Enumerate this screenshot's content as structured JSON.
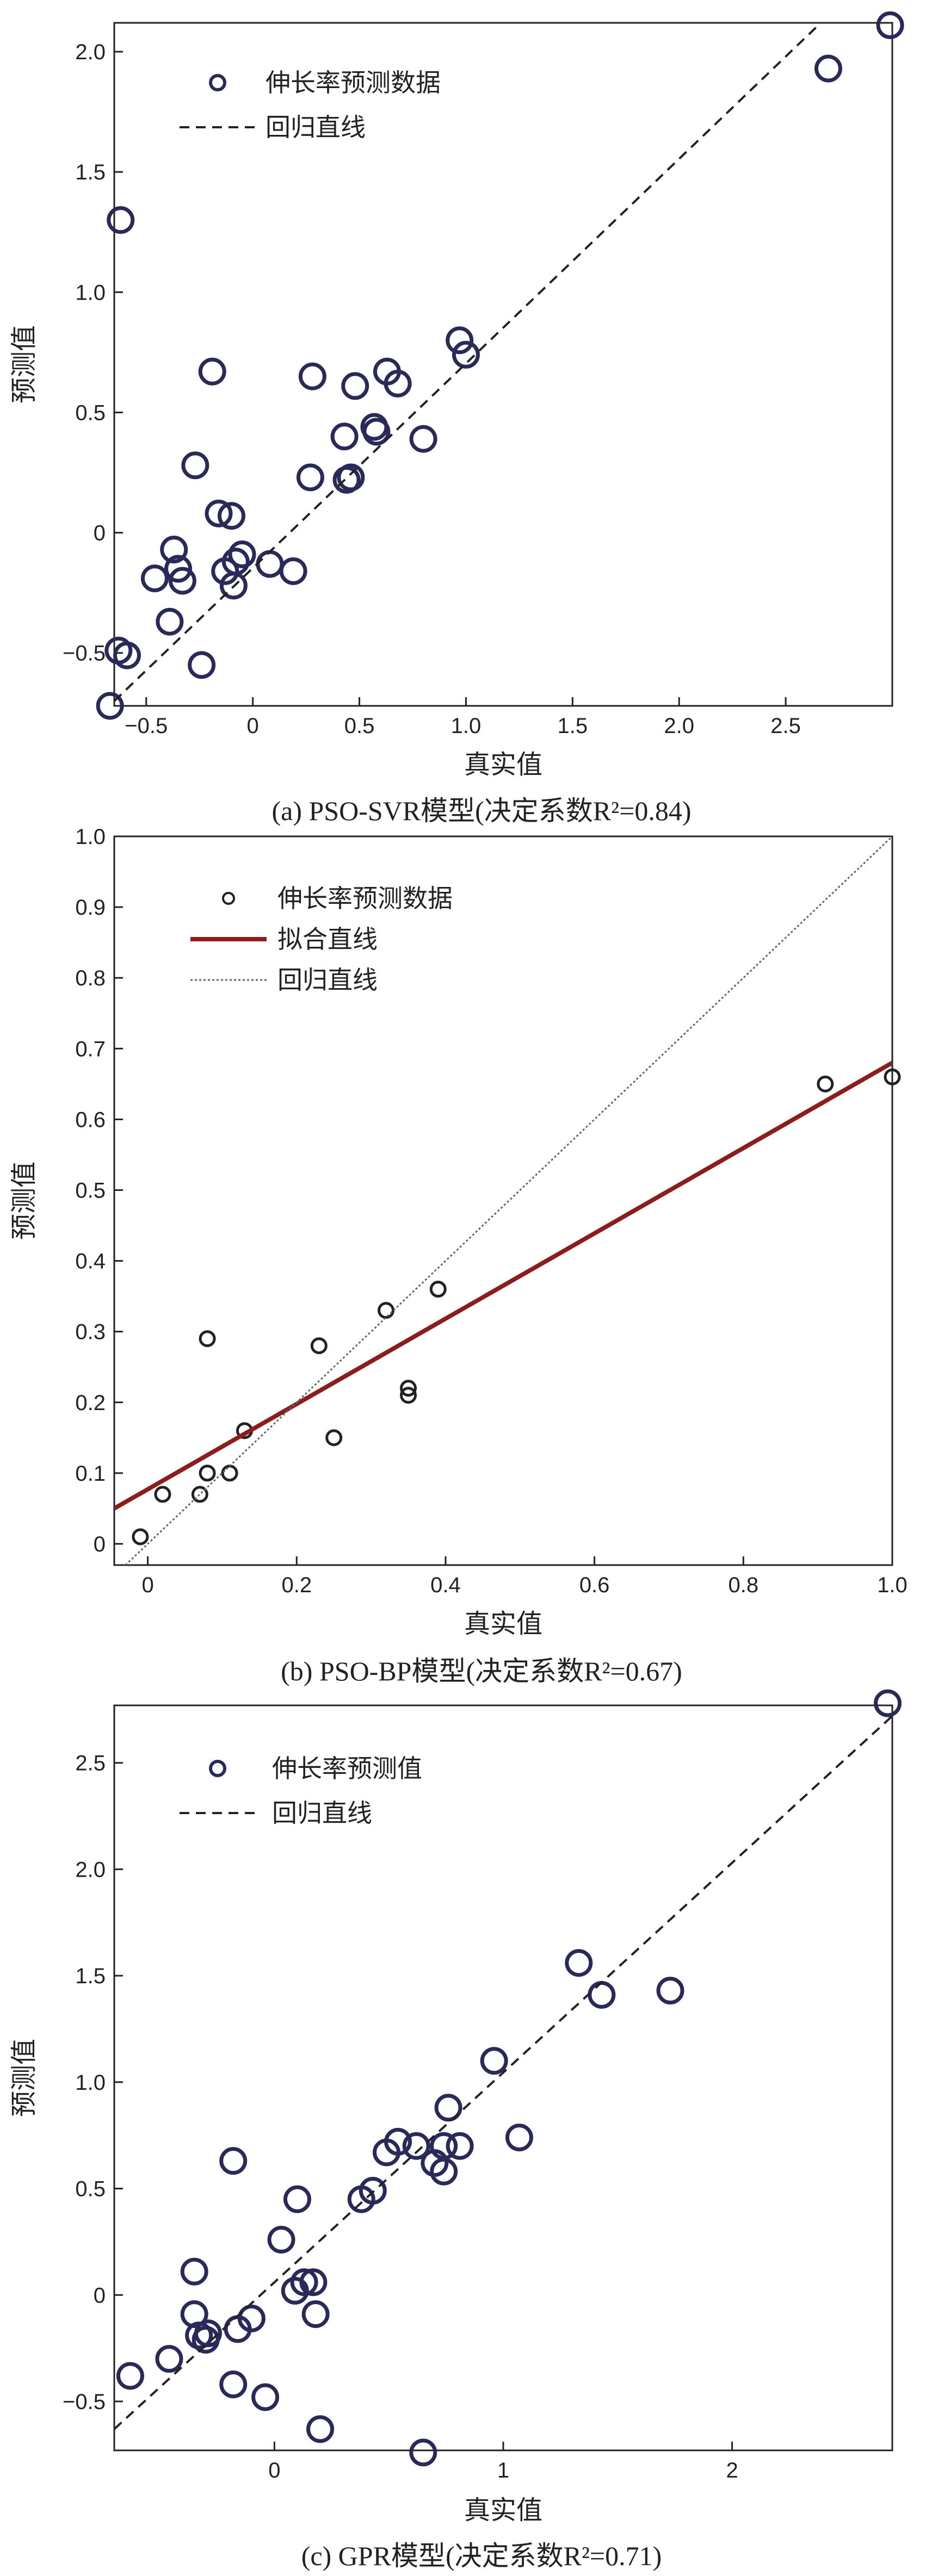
{
  "chart_data": [
    {
      "type": "scatter",
      "caption": "(a) PSO-SVR模型(决定系数R²=0.84)",
      "xlabel": "真实值",
      "ylabel": "预测值",
      "xlim": [
        -0.65,
        3.0
      ],
      "ylim": [
        -0.72,
        2.12
      ],
      "xticks": [
        -0.5,
        0,
        0.5,
        1.0,
        1.5,
        2.0,
        2.5
      ],
      "xtick_labels": [
        "−0.5",
        "0",
        "0.5",
        "1.0",
        "1.5",
        "2.0",
        "2.5"
      ],
      "yticks": [
        -0.5,
        0,
        0.5,
        1.0,
        1.5,
        2.0
      ],
      "ytick_labels": [
        "−0.5",
        "0",
        "0.5",
        "1.0",
        "1.5",
        "2.0"
      ],
      "legend": {
        "placement": "top-left",
        "items": [
          "伸长率预测数据",
          "回归直线"
        ]
      },
      "series": [
        {
          "name": "伸长率预测数据",
          "points": [
            [
              -0.62,
              1.3
            ],
            [
              -0.63,
              -0.49
            ],
            [
              -0.59,
              -0.51
            ],
            [
              -0.46,
              -0.19
            ],
            [
              -0.39,
              -0.37
            ],
            [
              -0.37,
              -0.07
            ],
            [
              -0.35,
              -0.15
            ],
            [
              -0.33,
              -0.2
            ],
            [
              -0.27,
              0.28
            ],
            [
              -0.24,
              -0.55
            ],
            [
              -0.19,
              0.67
            ],
            [
              -0.16,
              0.08
            ],
            [
              -0.13,
              -0.16
            ],
            [
              -0.1,
              0.07
            ],
            [
              -0.09,
              -0.22
            ],
            [
              -0.08,
              -0.12
            ],
            [
              -0.05,
              -0.09
            ],
            [
              0.08,
              -0.13
            ],
            [
              0.19,
              -0.16
            ],
            [
              0.27,
              0.23
            ],
            [
              0.28,
              0.65
            ],
            [
              0.43,
              0.4
            ],
            [
              0.44,
              0.22
            ],
            [
              0.46,
              0.23
            ],
            [
              0.48,
              0.61
            ],
            [
              0.57,
              0.44
            ],
            [
              0.58,
              0.42
            ],
            [
              0.63,
              0.67
            ],
            [
              0.68,
              0.62
            ],
            [
              0.8,
              0.39
            ],
            [
              0.97,
              0.8
            ],
            [
              1.0,
              0.74
            ],
            [
              2.7,
              1.93
            ],
            [
              2.99,
              2.11
            ],
            [
              -0.67,
              -0.72
            ]
          ]
        },
        {
          "name": "回归直线",
          "line": [
            [
              -0.65,
              -0.7
            ],
            [
              2.7,
              2.15
            ]
          ]
        }
      ]
    },
    {
      "type": "scatter",
      "caption": "(b) PSO-BP模型(决定系数R²=0.67)",
      "xlabel": "真实值",
      "ylabel": "预测值",
      "xlim": [
        -0.045,
        1.0
      ],
      "ylim": [
        -0.03,
        1.0
      ],
      "xticks": [
        0,
        0.2,
        0.4,
        0.6,
        0.8,
        1.0
      ],
      "xtick_labels": [
        "0",
        "0.2",
        "0.4",
        "0.6",
        "0.8",
        "1.0"
      ],
      "yticks": [
        0,
        0.1,
        0.2,
        0.3,
        0.4,
        0.5,
        0.6,
        0.7,
        0.8,
        0.9,
        1.0
      ],
      "ytick_labels": [
        "0",
        "0.1",
        "0.2",
        "0.3",
        "0.4",
        "0.5",
        "0.6",
        "0.7",
        "0.8",
        "0.9",
        "1.0"
      ],
      "legend": {
        "placement": "top-left",
        "items": [
          "伸长率预测数据",
          "拟合直线",
          "回归直线"
        ]
      },
      "series": [
        {
          "name": "伸长率预测数据",
          "points": [
            [
              -0.01,
              0.01
            ],
            [
              0.02,
              0.07
            ],
            [
              0.07,
              0.07
            ],
            [
              0.08,
              0.29
            ],
            [
              0.08,
              0.1
            ],
            [
              0.11,
              0.1
            ],
            [
              0.13,
              0.16
            ],
            [
              0.23,
              0.28
            ],
            [
              0.25,
              0.15
            ],
            [
              0.32,
              0.33
            ],
            [
              0.35,
              0.22
            ],
            [
              0.35,
              0.21
            ],
            [
              0.39,
              0.36
            ],
            [
              0.91,
              0.65
            ],
            [
              1.0,
              0.66
            ]
          ]
        },
        {
          "name": "拟合直线",
          "line": [
            [
              -0.045,
              0.05
            ],
            [
              1.0,
              0.68
            ]
          ]
        },
        {
          "name": "回归直线",
          "line": [
            [
              -0.03,
              -0.03
            ],
            [
              1.0,
              1.0
            ]
          ]
        }
      ]
    },
    {
      "type": "scatter",
      "caption": "(c) GPR模型(决定系数R²=0.71)",
      "xlabel": "真实值",
      "ylabel": "预测值",
      "xlim": [
        -0.7,
        2.7
      ],
      "ylim": [
        -0.73,
        2.77
      ],
      "xticks": [
        0,
        1,
        2
      ],
      "xtick_labels": [
        "0",
        "1",
        "2"
      ],
      "yticks": [
        -0.5,
        0,
        0.5,
        1.0,
        1.5,
        2.0,
        2.5
      ],
      "ytick_labels": [
        "−0.5",
        "0",
        "0.5",
        "1.0",
        "1.5",
        "2.0",
        "2.5"
      ],
      "legend": {
        "placement": "top-left",
        "items": [
          "伸长率预测值",
          "回归直线"
        ]
      },
      "series": [
        {
          "name": "伸长率预测值",
          "points": [
            [
              -0.63,
              -0.38
            ],
            [
              -0.46,
              -0.3
            ],
            [
              -0.35,
              0.11
            ],
            [
              -0.35,
              -0.09
            ],
            [
              -0.33,
              -0.19
            ],
            [
              -0.3,
              -0.21
            ],
            [
              -0.29,
              -0.18
            ],
            [
              -0.18,
              -0.42
            ],
            [
              -0.18,
              0.63
            ],
            [
              -0.16,
              -0.16
            ],
            [
              -0.1,
              -0.11
            ],
            [
              -0.04,
              -0.48
            ],
            [
              0.03,
              0.26
            ],
            [
              0.09,
              0.02
            ],
            [
              0.1,
              0.45
            ],
            [
              0.13,
              0.06
            ],
            [
              0.17,
              0.06
            ],
            [
              0.18,
              -0.09
            ],
            [
              0.2,
              -0.63
            ],
            [
              0.38,
              0.45
            ],
            [
              0.43,
              0.49
            ],
            [
              0.49,
              0.67
            ],
            [
              0.54,
              0.72
            ],
            [
              0.62,
              0.7
            ],
            [
              0.65,
              -0.74
            ],
            [
              0.7,
              0.62
            ],
            [
              0.74,
              0.58
            ],
            [
              0.74,
              0.7
            ],
            [
              0.76,
              0.88
            ],
            [
              0.81,
              0.7
            ],
            [
              0.96,
              1.1
            ],
            [
              1.07,
              0.74
            ],
            [
              1.33,
              1.56
            ],
            [
              1.43,
              1.41
            ],
            [
              1.73,
              1.43
            ],
            [
              2.68,
              2.78
            ]
          ]
        },
        {
          "name": "回归直线",
          "line": [
            [
              -0.7,
              -0.63
            ],
            [
              2.7,
              2.72
            ]
          ]
        }
      ]
    }
  ]
}
